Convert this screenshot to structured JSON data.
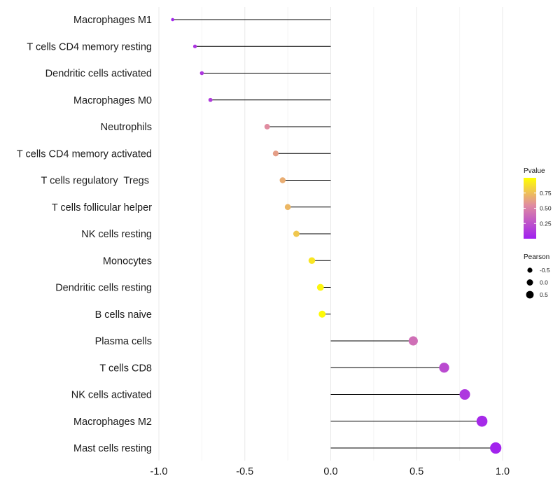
{
  "chart_data": {
    "type": "lollipop",
    "title": "",
    "xlabel": "",
    "ylabel": "",
    "xlim": [
      -1.0,
      1.0
    ],
    "xticks": [
      -1.0,
      -0.5,
      0.0,
      0.5,
      1.0
    ],
    "xtick_labels": [
      "-1.0",
      "-0.5",
      "0.0",
      "0.5",
      "1.0"
    ],
    "grid": true,
    "series": [
      {
        "label": "Macrophages M1",
        "pearson": -0.92,
        "pvalue": 0.02
      },
      {
        "label": "T cells CD4 memory resting",
        "pearson": -0.79,
        "pvalue": 0.1
      },
      {
        "label": "Dendritic cells activated",
        "pearson": -0.75,
        "pvalue": 0.12
      },
      {
        "label": "Macrophages M0",
        "pearson": -0.7,
        "pvalue": 0.14
      },
      {
        "label": "Neutrophils",
        "pearson": -0.37,
        "pvalue": 0.55
      },
      {
        "label": "T cells CD4 memory activated",
        "pearson": -0.32,
        "pvalue": 0.62
      },
      {
        "label": "T cells regulatory  Tregs ",
        "pearson": -0.28,
        "pvalue": 0.68
      },
      {
        "label": "T cells follicular helper",
        "pearson": -0.25,
        "pvalue": 0.72
      },
      {
        "label": "NK cells resting",
        "pearson": -0.2,
        "pvalue": 0.78
      },
      {
        "label": "Monocytes",
        "pearson": -0.11,
        "pvalue": 0.9
      },
      {
        "label": "Dendritic cells resting",
        "pearson": -0.06,
        "pvalue": 0.96
      },
      {
        "label": "B cells naive",
        "pearson": -0.05,
        "pvalue": 0.98
      },
      {
        "label": "Plasma cells",
        "pearson": 0.48,
        "pvalue": 0.4
      },
      {
        "label": "T cells CD8",
        "pearson": 0.66,
        "pvalue": 0.22
      },
      {
        "label": "NK cells activated",
        "pearson": 0.78,
        "pvalue": 0.12
      },
      {
        "label": "Macrophages M2",
        "pearson": 0.88,
        "pvalue": 0.05
      },
      {
        "label": "Mast cells resting",
        "pearson": 0.96,
        "pvalue": 0.02
      }
    ],
    "legend": {
      "color": {
        "title": "Pvalue",
        "ticks": [
          0.75,
          0.5,
          0.25
        ],
        "tick_labels": [
          "0.75",
          "0.50",
          "0.25"
        ],
        "range": [
          0.0,
          1.0
        ],
        "low_color": "#a020f0",
        "mid_color": "#e08ca0",
        "high_color": "#ffff00"
      },
      "size": {
        "title": "Pearson",
        "values": [
          -0.5,
          0.0,
          0.5
        ],
        "labels": [
          "-0.5",
          "0.0",
          "0.5"
        ]
      },
      "placement": "right"
    },
    "colors": {
      "stem": "#000000",
      "grid_major": "#e8e8e8",
      "grid_minor": "#f4f4f4"
    }
  }
}
